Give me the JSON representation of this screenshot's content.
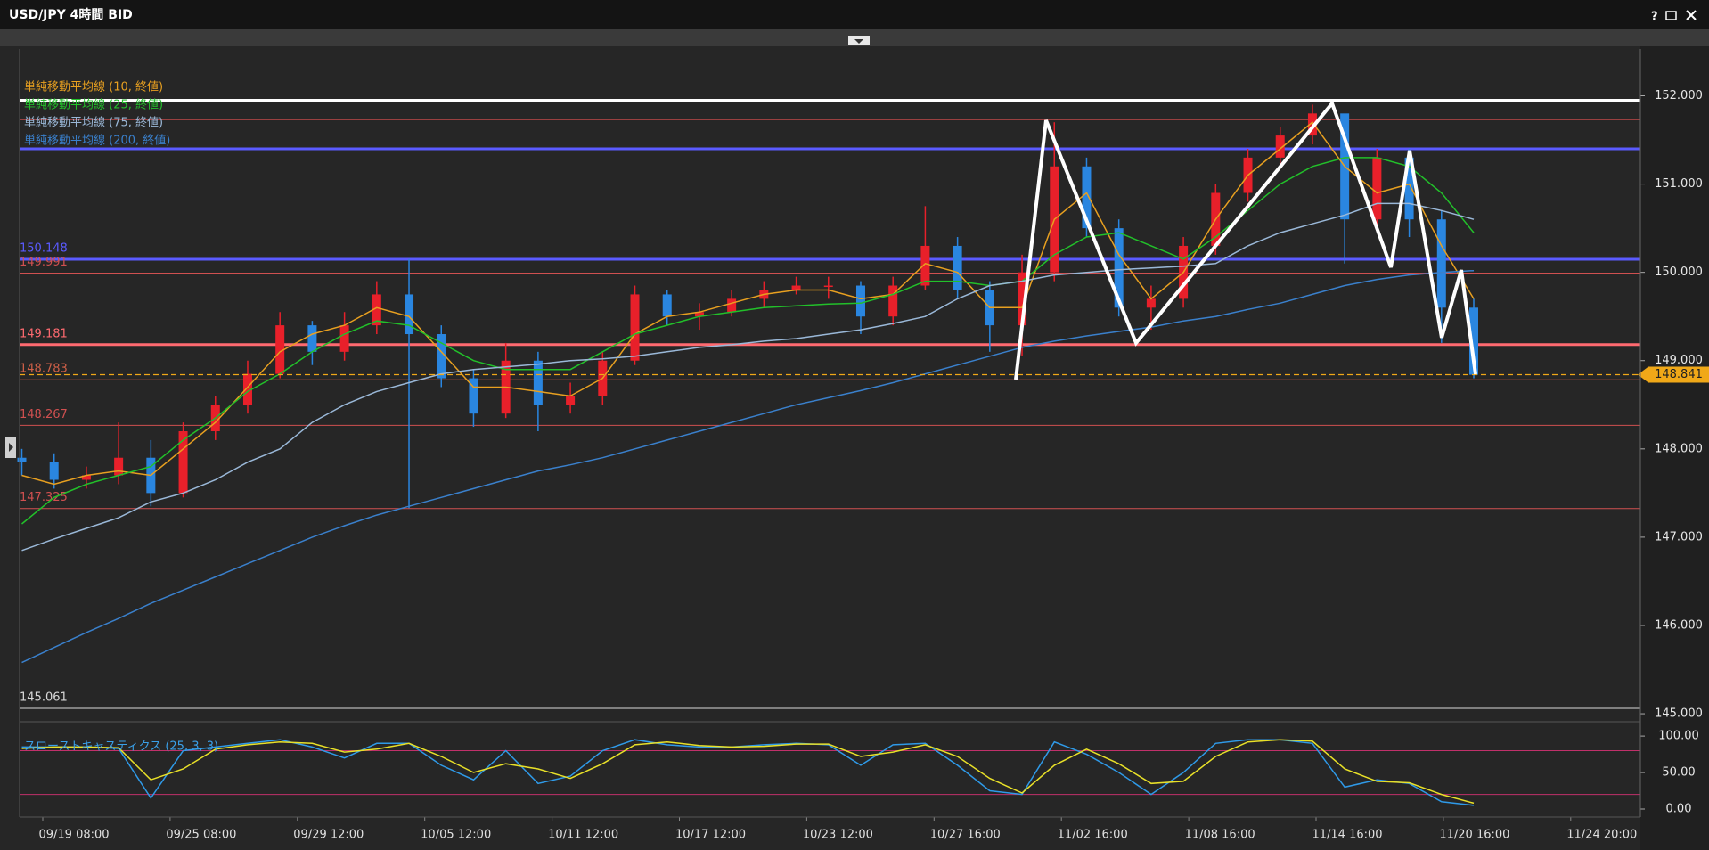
{
  "window_title": "USD/JPY 4時間 BID",
  "chart_data": [
    {
      "type": "candlestick",
      "up_color": "#e8202a",
      "down_color": "#2a86e0",
      "open": [
        147.9,
        147.85,
        147.65,
        147.7,
        147.9,
        147.5,
        148.2,
        148.5,
        148.85,
        149.4,
        149.1,
        149.4,
        149.75,
        149.3,
        148.8,
        148.4,
        149.0,
        148.5,
        148.6,
        149.0,
        149.75,
        149.5,
        149.55,
        149.7,
        149.8,
        149.85,
        149.85,
        149.5,
        149.85,
        150.3,
        149.8,
        149.4,
        150.0,
        151.2,
        150.5,
        149.6,
        149.7,
        150.3,
        150.9,
        151.3,
        151.55,
        151.8,
        150.6,
        151.3,
        150.6,
        149.6
      ],
      "high": [
        148.0,
        147.95,
        147.8,
        148.3,
        148.1,
        148.3,
        148.6,
        149.0,
        149.55,
        149.45,
        149.55,
        149.9,
        150.15,
        149.4,
        148.9,
        149.2,
        149.1,
        148.75,
        149.1,
        149.85,
        149.8,
        149.65,
        149.8,
        149.9,
        149.95,
        149.95,
        149.9,
        149.95,
        150.75,
        150.4,
        149.9,
        150.2,
        151.7,
        151.3,
        150.6,
        149.85,
        150.4,
        151.0,
        151.4,
        151.65,
        151.9,
        151.75,
        151.4,
        151.4,
        150.7,
        149.7
      ],
      "low": [
        147.7,
        147.55,
        147.55,
        147.6,
        147.35,
        147.45,
        148.1,
        148.4,
        148.8,
        148.95,
        149.0,
        149.3,
        147.33,
        148.7,
        148.25,
        148.35,
        148.2,
        148.4,
        148.5,
        148.95,
        149.4,
        149.35,
        149.5,
        149.6,
        149.75,
        149.7,
        149.3,
        149.4,
        149.8,
        149.7,
        149.1,
        149.05,
        149.9,
        150.4,
        149.5,
        149.35,
        149.6,
        150.2,
        150.8,
        151.2,
        151.45,
        150.1,
        150.5,
        150.4,
        149.2,
        148.8
      ],
      "close": [
        147.85,
        147.65,
        147.7,
        147.9,
        147.5,
        148.2,
        148.5,
        148.85,
        149.4,
        149.1,
        149.4,
        149.75,
        149.3,
        148.8,
        148.4,
        149.0,
        148.5,
        148.6,
        149.0,
        149.75,
        149.5,
        149.55,
        149.7,
        149.8,
        149.85,
        149.85,
        149.5,
        149.85,
        150.3,
        149.8,
        149.4,
        150.0,
        151.2,
        150.5,
        149.6,
        149.7,
        150.3,
        150.9,
        151.3,
        151.55,
        151.8,
        150.6,
        151.3,
        150.6,
        149.6,
        148.84
      ],
      "series": [
        {
          "name": "単純移動平均線 (10, 終値)",
          "color": "#e8a020",
          "values": [
            147.7,
            147.6,
            147.7,
            147.75,
            147.7,
            148.0,
            148.3,
            148.7,
            149.1,
            149.3,
            149.4,
            149.6,
            149.5,
            149.1,
            148.7,
            148.7,
            148.65,
            148.6,
            148.8,
            149.3,
            149.5,
            149.55,
            149.65,
            149.75,
            149.8,
            149.8,
            149.7,
            149.75,
            150.1,
            150.0,
            149.6,
            149.6,
            150.6,
            150.9,
            150.2,
            149.7,
            150.0,
            150.6,
            151.1,
            151.4,
            151.7,
            151.2,
            150.9,
            151.0,
            150.3,
            149.7
          ]
        },
        {
          "name": "単純移動平均線 (25, 終値)",
          "color": "#22c02a",
          "values": [
            147.15,
            147.45,
            147.6,
            147.7,
            147.8,
            148.1,
            148.35,
            148.65,
            148.85,
            149.1,
            149.3,
            149.45,
            149.4,
            149.2,
            149.0,
            148.9,
            148.9,
            148.9,
            149.1,
            149.3,
            149.4,
            149.5,
            149.55,
            149.6,
            149.62,
            149.64,
            149.65,
            149.75,
            149.9,
            149.9,
            149.85,
            149.9,
            150.2,
            150.4,
            150.45,
            150.3,
            150.15,
            150.4,
            150.7,
            151.0,
            151.2,
            151.3,
            151.3,
            151.2,
            150.9,
            150.45
          ]
        },
        {
          "name": "単純移動平均線 (75, 終値)",
          "color": "#9ab8d8",
          "values": [
            146.85,
            146.98,
            147.1,
            147.22,
            147.4,
            147.5,
            147.65,
            147.85,
            148.0,
            148.3,
            148.5,
            148.65,
            148.75,
            148.85,
            148.9,
            148.93,
            148.96,
            149.0,
            149.02,
            149.05,
            149.1,
            149.15,
            149.18,
            149.22,
            149.25,
            149.3,
            149.35,
            149.42,
            149.5,
            149.7,
            149.85,
            149.9,
            149.97,
            150.0,
            150.03,
            150.05,
            150.07,
            150.1,
            150.3,
            150.45,
            150.55,
            150.65,
            150.78,
            150.78,
            150.7,
            150.6
          ]
        },
        {
          "name": "単純移動平均線 (200, 終値)",
          "color": "#3a80cc",
          "values": [
            145.58,
            145.75,
            145.92,
            146.08,
            146.25,
            146.4,
            146.55,
            146.7,
            146.85,
            147.0,
            147.13,
            147.25,
            147.35,
            147.45,
            147.55,
            147.65,
            147.75,
            147.82,
            147.9,
            148.0,
            148.1,
            148.2,
            148.3,
            148.4,
            148.5,
            148.58,
            148.66,
            148.75,
            148.85,
            148.95,
            149.05,
            149.15,
            149.22,
            149.28,
            149.33,
            149.38,
            149.45,
            149.5,
            149.58,
            149.65,
            149.75,
            149.85,
            149.92,
            149.97,
            150.0,
            150.02
          ]
        }
      ],
      "ylim": [
        144.94,
        152.53
      ],
      "yticks": [
        {
          "value": 145,
          "label": "145.000"
        },
        {
          "value": 146,
          "label": "146.000"
        },
        {
          "value": 147,
          "label": "147.000"
        },
        {
          "value": 148,
          "label": "148.000"
        },
        {
          "value": 149,
          "label": "149.000"
        },
        {
          "value": 150,
          "label": "150.000"
        },
        {
          "value": 151,
          "label": "151.000"
        },
        {
          "value": 152,
          "label": "152.000"
        }
      ],
      "levels": [
        {
          "value": 151.95,
          "color": "#ffffff",
          "width": 3,
          "show_label": false
        },
        {
          "value": 151.73,
          "color": "#c04848",
          "width": 1,
          "show_label": false
        },
        {
          "value": 151.4,
          "color": "#5a5aff",
          "width": 3,
          "show_label": false
        },
        {
          "value": 150.148,
          "color": "#5a5aff",
          "width": 3,
          "show_label": true
        },
        {
          "value": 149.991,
          "color": "#d05050",
          "width": 1,
          "show_label": true
        },
        {
          "value": 149.181,
          "color": "#ff6a70",
          "width": 3,
          "show_label": true
        },
        {
          "value": 148.783,
          "color": "#d06048",
          "width": 1,
          "show_label": true
        },
        {
          "value": 148.267,
          "color": "#d05050",
          "width": 1,
          "show_label": true
        },
        {
          "value": 147.325,
          "color": "#d05050",
          "width": 1,
          "show_label": true
        },
        {
          "value": 145.061,
          "color": "#d8d8d8",
          "width": 1,
          "show_label": true
        }
      ],
      "current_price": {
        "value": 148.841,
        "color": "#f0a818"
      },
      "xlabels": [
        "09/19 08:00",
        "09/25 08:00",
        "09/29 12:00",
        "10/05 12:00",
        "10/11 12:00",
        "10/17 12:00",
        "10/23 12:00",
        "10/27 16:00",
        "11/02 16:00",
        "11/08 16:00",
        "11/14 16:00",
        "11/20 16:00",
        "11/24 20:00"
      ]
    },
    {
      "type": "line",
      "title": "スローストキャスティクス (25, 3, 3)",
      "series": [
        {
          "name": "%K",
          "color": "#2f9ae8",
          "values": [
            85,
            85,
            85,
            83,
            15,
            80,
            85,
            90,
            95,
            85,
            70,
            90,
            90,
            60,
            40,
            80,
            35,
            45,
            80,
            95,
            88,
            85,
            85,
            88,
            90,
            88,
            60,
            88,
            90,
            60,
            25,
            20,
            92,
            75,
            50,
            20,
            50,
            90,
            95,
            95,
            90,
            30,
            40,
            35,
            10,
            5
          ]
        },
        {
          "name": "%D",
          "color": "#e8e028",
          "values": [
            83,
            85,
            85,
            84,
            40,
            55,
            82,
            88,
            92,
            90,
            78,
            82,
            90,
            72,
            50,
            62,
            55,
            42,
            62,
            88,
            92,
            87,
            85,
            86,
            89,
            89,
            72,
            78,
            88,
            72,
            42,
            22,
            60,
            82,
            62,
            35,
            38,
            72,
            92,
            95,
            93,
            55,
            38,
            36,
            20,
            8
          ]
        }
      ],
      "ylim": [
        -11,
        116
      ],
      "yticks": [
        {
          "value": 0,
          "label": "0.00"
        },
        {
          "value": 50,
          "label": "50.00"
        },
        {
          "value": 100,
          "label": "100.00"
        }
      ],
      "levels": [
        {
          "value": 80,
          "color": "#c0306a",
          "width": 1,
          "show_label": false
        },
        {
          "value": 20,
          "color": "#c0306a",
          "width": 1,
          "show_label": false
        }
      ]
    }
  ]
}
